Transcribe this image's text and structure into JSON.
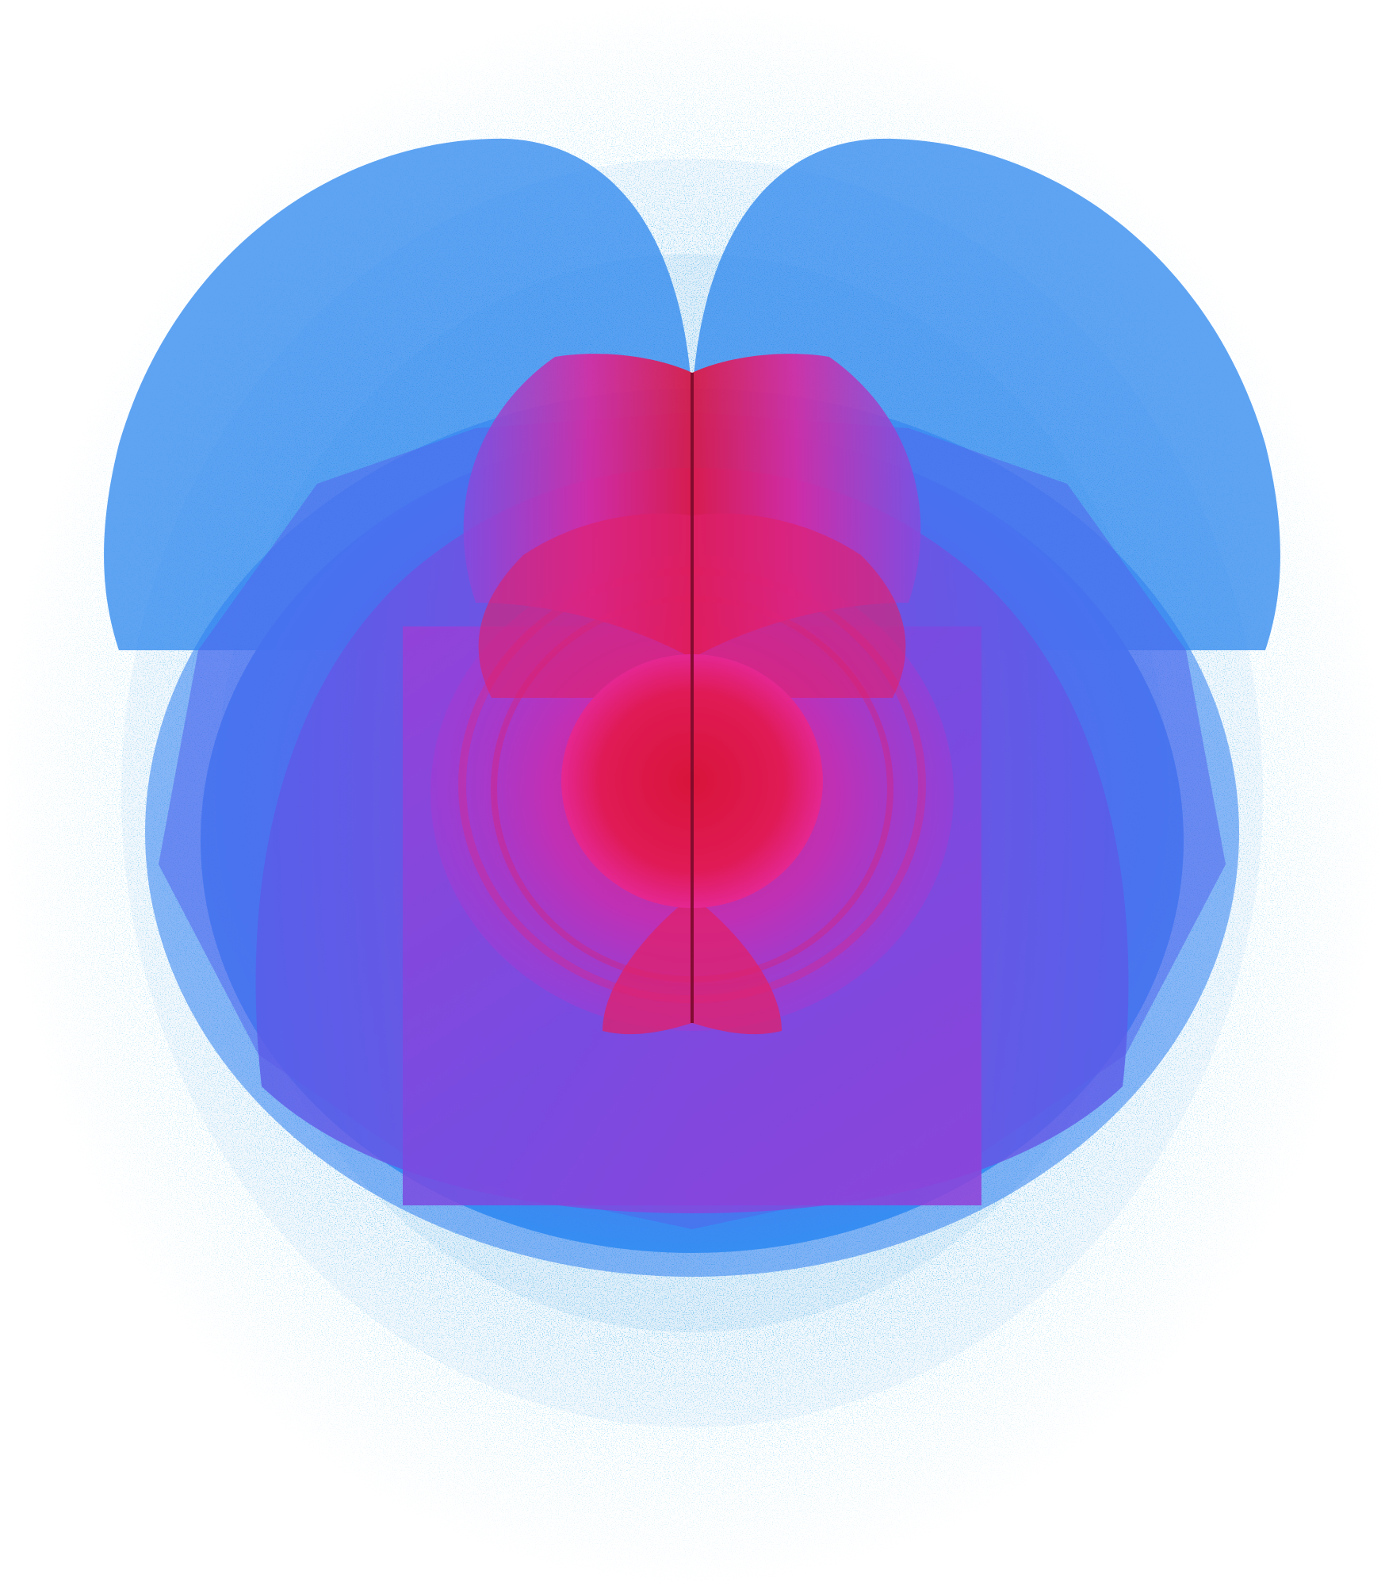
{
  "artwork": {
    "subject": "symmetric-fractal-bloom",
    "colors": {
      "background": "#ffffff",
      "speckle": "#1e90d8",
      "outer_blue": "#2f7ff0",
      "violet": "#7b4fe0",
      "magenta": "#d426a8",
      "crimson": "#e0163f",
      "core_line": "#7a0a2a"
    }
  }
}
